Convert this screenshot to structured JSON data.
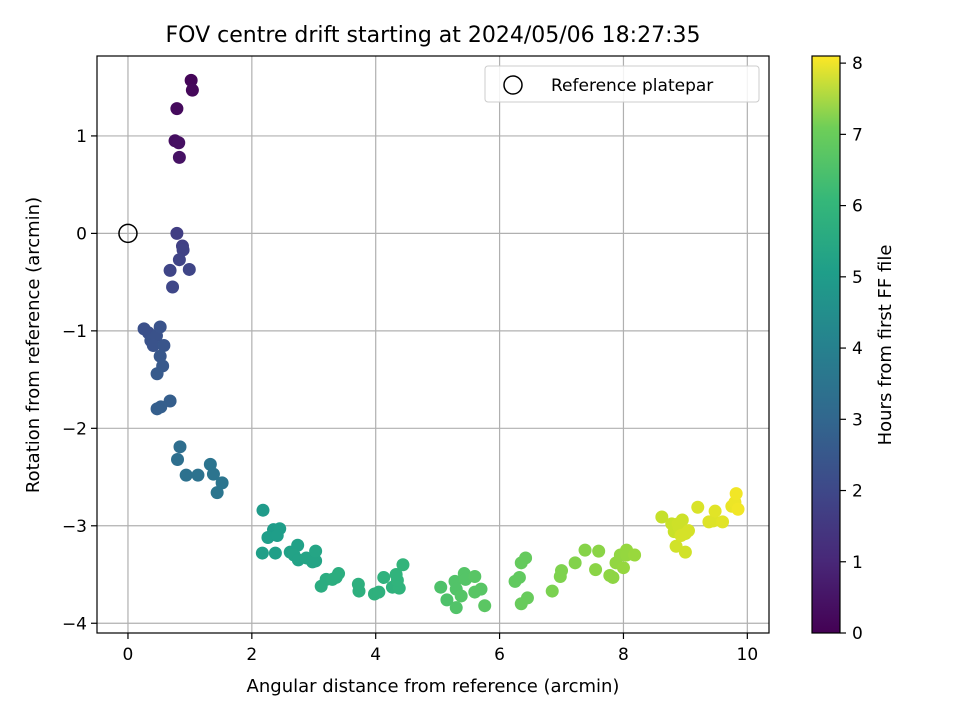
{
  "chart_data": {
    "type": "scatter",
    "title": "FOV centre drift starting at 2024/05/06 18:27:35",
    "xlabel": "Angular distance from reference (arcmin)",
    "ylabel": "Rotation from reference (arcmin)",
    "xlim": [
      -0.5,
      10.35
    ],
    "ylim": [
      -4.1,
      1.82
    ],
    "xticks": [
      0,
      2,
      4,
      6,
      8,
      10
    ],
    "yticks": [
      1,
      0,
      -1,
      -2,
      -3,
      -4
    ],
    "xtick_labels": [
      "0",
      "2",
      "4",
      "6",
      "8",
      "10"
    ],
    "ytick_labels": [
      "1",
      "0",
      "−1",
      "−2",
      "−3",
      "−4"
    ],
    "grid": true,
    "colormap": "viridis",
    "colorbar": {
      "label": "Hours from first FF file",
      "range": [
        0,
        8.1
      ],
      "ticks": [
        0,
        1,
        2,
        3,
        4,
        5,
        6,
        7,
        8
      ],
      "tick_labels": [
        "0",
        "1",
        "2",
        "3",
        "4",
        "5",
        "6",
        "7",
        "8"
      ]
    },
    "legend": {
      "placement": "top-right",
      "label": "Reference platepar"
    },
    "reference_point": {
      "x": 0,
      "y": 0
    },
    "points": [
      {
        "x": 1.02,
        "y": 1.57,
        "c": 0.1
      },
      {
        "x": 1.04,
        "y": 1.47,
        "c": 0.15
      },
      {
        "x": 0.79,
        "y": 1.28,
        "c": 0.2
      },
      {
        "x": 0.76,
        "y": 0.95,
        "c": 0.3
      },
      {
        "x": 0.82,
        "y": 0.93,
        "c": 0.35
      },
      {
        "x": 0.83,
        "y": 0.78,
        "c": 0.4
      },
      {
        "x": 0.79,
        "y": 0.0,
        "c": 1.5
      },
      {
        "x": 0.88,
        "y": -0.13,
        "c": 1.55
      },
      {
        "x": 0.89,
        "y": -0.17,
        "c": 1.6
      },
      {
        "x": 0.83,
        "y": -0.27,
        "c": 1.65
      },
      {
        "x": 0.68,
        "y": -0.38,
        "c": 1.7
      },
      {
        "x": 0.99,
        "y": -0.37,
        "c": 1.7
      },
      {
        "x": 0.72,
        "y": -0.55,
        "c": 1.75
      },
      {
        "x": 0.26,
        "y": -0.98,
        "c": 2.0
      },
      {
        "x": 0.33,
        "y": -1.02,
        "c": 2.0
      },
      {
        "x": 0.37,
        "y": -1.1,
        "c": 2.05
      },
      {
        "x": 0.46,
        "y": -1.05,
        "c": 2.05
      },
      {
        "x": 0.52,
        "y": -0.96,
        "c": 2.1
      },
      {
        "x": 0.41,
        "y": -1.15,
        "c": 2.1
      },
      {
        "x": 0.58,
        "y": -1.15,
        "c": 2.15
      },
      {
        "x": 0.52,
        "y": -1.26,
        "c": 2.2
      },
      {
        "x": 0.56,
        "y": -1.36,
        "c": 2.25
      },
      {
        "x": 0.47,
        "y": -1.44,
        "c": 2.3
      },
      {
        "x": 0.68,
        "y": -1.72,
        "c": 2.4
      },
      {
        "x": 0.53,
        "y": -1.78,
        "c": 2.45
      },
      {
        "x": 0.47,
        "y": -1.8,
        "c": 2.45
      },
      {
        "x": 0.84,
        "y": -2.19,
        "c": 2.9
      },
      {
        "x": 0.8,
        "y": -2.32,
        "c": 2.95
      },
      {
        "x": 0.94,
        "y": -2.48,
        "c": 3.0
      },
      {
        "x": 1.13,
        "y": -2.48,
        "c": 3.05
      },
      {
        "x": 1.33,
        "y": -2.37,
        "c": 3.1
      },
      {
        "x": 1.38,
        "y": -2.47,
        "c": 3.1
      },
      {
        "x": 1.52,
        "y": -2.56,
        "c": 3.15
      },
      {
        "x": 1.44,
        "y": -2.66,
        "c": 3.15
      },
      {
        "x": 2.18,
        "y": -2.84,
        "c": 4.4
      },
      {
        "x": 2.35,
        "y": -3.04,
        "c": 4.45
      },
      {
        "x": 2.45,
        "y": -3.03,
        "c": 4.5
      },
      {
        "x": 2.26,
        "y": -3.12,
        "c": 4.5
      },
      {
        "x": 2.41,
        "y": -3.1,
        "c": 4.5
      },
      {
        "x": 2.17,
        "y": -3.28,
        "c": 4.55
      },
      {
        "x": 2.38,
        "y": -3.28,
        "c": 4.55
      },
      {
        "x": 2.62,
        "y": -3.27,
        "c": 4.6
      },
      {
        "x": 2.74,
        "y": -3.2,
        "c": 4.6
      },
      {
        "x": 2.68,
        "y": -3.3,
        "c": 4.65
      },
      {
        "x": 2.75,
        "y": -3.35,
        "c": 4.65
      },
      {
        "x": 2.88,
        "y": -3.33,
        "c": 4.7
      },
      {
        "x": 2.98,
        "y": -3.37,
        "c": 4.7
      },
      {
        "x": 3.03,
        "y": -3.36,
        "c": 4.7
      },
      {
        "x": 3.03,
        "y": -3.26,
        "c": 4.75
      },
      {
        "x": 3.2,
        "y": -3.55,
        "c": 5.0
      },
      {
        "x": 3.12,
        "y": -3.62,
        "c": 5.0
      },
      {
        "x": 3.3,
        "y": -3.55,
        "c": 5.05
      },
      {
        "x": 3.4,
        "y": -3.49,
        "c": 5.05
      },
      {
        "x": 3.36,
        "y": -3.53,
        "c": 5.05
      },
      {
        "x": 3.72,
        "y": -3.6,
        "c": 5.1
      },
      {
        "x": 3.73,
        "y": -3.67,
        "c": 5.1
      },
      {
        "x": 3.98,
        "y": -3.7,
        "c": 5.15
      },
      {
        "x": 4.05,
        "y": -3.68,
        "c": 5.15
      },
      {
        "x": 4.13,
        "y": -3.53,
        "c": 5.2
      },
      {
        "x": 4.27,
        "y": -3.63,
        "c": 5.2
      },
      {
        "x": 4.38,
        "y": -3.64,
        "c": 5.25
      },
      {
        "x": 4.35,
        "y": -3.56,
        "c": 5.25
      },
      {
        "x": 4.33,
        "y": -3.5,
        "c": 5.25
      },
      {
        "x": 4.44,
        "y": -3.4,
        "c": 5.3
      },
      {
        "x": 5.05,
        "y": -3.63,
        "c": 5.8
      },
      {
        "x": 5.15,
        "y": -3.76,
        "c": 5.8
      },
      {
        "x": 5.28,
        "y": -3.57,
        "c": 5.85
      },
      {
        "x": 5.3,
        "y": -3.65,
        "c": 5.85
      },
      {
        "x": 5.3,
        "y": -3.84,
        "c": 5.85
      },
      {
        "x": 5.38,
        "y": -3.72,
        "c": 5.9
      },
      {
        "x": 5.43,
        "y": -3.49,
        "c": 5.9
      },
      {
        "x": 5.45,
        "y": -3.55,
        "c": 5.9
      },
      {
        "x": 5.6,
        "y": -3.52,
        "c": 5.95
      },
      {
        "x": 5.6,
        "y": -3.68,
        "c": 5.95
      },
      {
        "x": 5.7,
        "y": -3.65,
        "c": 5.95
      },
      {
        "x": 5.76,
        "y": -3.82,
        "c": 6.0
      },
      {
        "x": 6.25,
        "y": -3.57,
        "c": 6.1
      },
      {
        "x": 6.32,
        "y": -3.53,
        "c": 6.1
      },
      {
        "x": 6.35,
        "y": -3.38,
        "c": 6.15
      },
      {
        "x": 6.42,
        "y": -3.33,
        "c": 6.15
      },
      {
        "x": 6.35,
        "y": -3.8,
        "c": 6.2
      },
      {
        "x": 6.45,
        "y": -3.74,
        "c": 6.2
      },
      {
        "x": 6.85,
        "y": -3.67,
        "c": 6.45
      },
      {
        "x": 6.98,
        "y": -3.52,
        "c": 6.5
      },
      {
        "x": 7.0,
        "y": -3.46,
        "c": 6.5
      },
      {
        "x": 7.22,
        "y": -3.38,
        "c": 6.55
      },
      {
        "x": 7.38,
        "y": -3.25,
        "c": 6.6
      },
      {
        "x": 7.55,
        "y": -3.45,
        "c": 6.65
      },
      {
        "x": 7.6,
        "y": -3.26,
        "c": 6.65
      },
      {
        "x": 7.78,
        "y": -3.51,
        "c": 6.7
      },
      {
        "x": 7.83,
        "y": -3.53,
        "c": 6.7
      },
      {
        "x": 7.88,
        "y": -3.38,
        "c": 6.75
      },
      {
        "x": 7.95,
        "y": -3.3,
        "c": 6.75
      },
      {
        "x": 8.05,
        "y": -3.25,
        "c": 6.8
      },
      {
        "x": 8.0,
        "y": -3.43,
        "c": 6.8
      },
      {
        "x": 8.05,
        "y": -3.3,
        "c": 6.8
      },
      {
        "x": 8.18,
        "y": -3.3,
        "c": 6.85
      },
      {
        "x": 8.62,
        "y": -2.91,
        "c": 7.4
      },
      {
        "x": 8.78,
        "y": -2.98,
        "c": 7.45
      },
      {
        "x": 8.82,
        "y": -3.06,
        "c": 7.45
      },
      {
        "x": 8.88,
        "y": -2.98,
        "c": 7.5
      },
      {
        "x": 8.9,
        "y": -3.02,
        "c": 7.5
      },
      {
        "x": 8.95,
        "y": -2.94,
        "c": 7.5
      },
      {
        "x": 8.85,
        "y": -3.21,
        "c": 7.55
      },
      {
        "x": 9.0,
        "y": -3.27,
        "c": 7.55
      },
      {
        "x": 9.0,
        "y": -3.08,
        "c": 7.55
      },
      {
        "x": 9.05,
        "y": -3.05,
        "c": 7.6
      },
      {
        "x": 8.93,
        "y": -3.1,
        "c": 7.6
      },
      {
        "x": 9.2,
        "y": -2.81,
        "c": 7.65
      },
      {
        "x": 9.38,
        "y": -2.96,
        "c": 7.7
      },
      {
        "x": 9.45,
        "y": -2.95,
        "c": 7.7
      },
      {
        "x": 9.48,
        "y": -2.85,
        "c": 7.75
      },
      {
        "x": 9.6,
        "y": -2.96,
        "c": 7.75
      },
      {
        "x": 9.75,
        "y": -2.8,
        "c": 7.85
      },
      {
        "x": 9.8,
        "y": -2.76,
        "c": 7.9
      },
      {
        "x": 9.82,
        "y": -2.67,
        "c": 7.95
      },
      {
        "x": 9.85,
        "y": -2.83,
        "c": 7.95
      }
    ]
  }
}
